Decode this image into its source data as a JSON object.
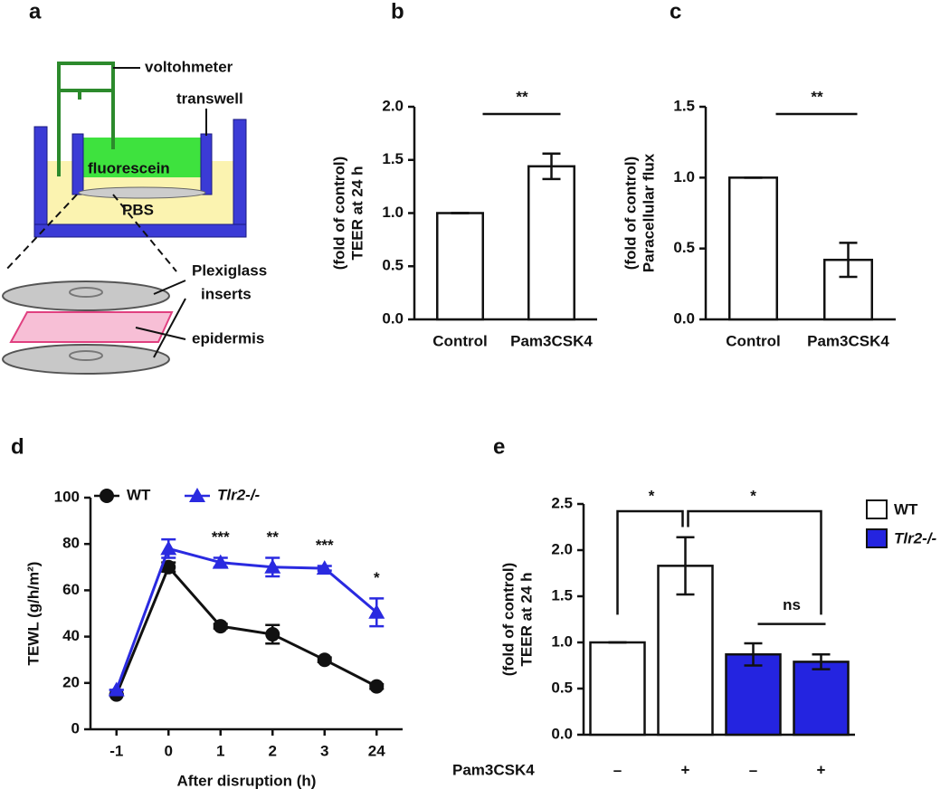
{
  "diagram": {
    "panel": "a",
    "voltohmeter": "voltohmeter",
    "transwell": "transwell",
    "fluorescein": "fluorescein",
    "buffer": "PBS",
    "inserts": [
      "Plexiglass",
      "inserts"
    ],
    "epidermis": "epidermis"
  },
  "chart_data": [
    {
      "type": "bar",
      "panel": "b",
      "y_label": [
        "TEER at 24 h",
        "(fold of control)"
      ],
      "categories": [
        "Control",
        "Pam3CSK4"
      ],
      "values": [
        1.0,
        1.44
      ],
      "errors": [
        0,
        0.12
      ],
      "color": "#ffffff",
      "ylim": [
        0,
        2
      ],
      "yticks": [
        {
          "value": 0,
          "label": "0.0"
        },
        0.5,
        {
          "value": 1,
          "label": "1.0"
        },
        1.5,
        {
          "value": 2,
          "label": "2.0"
        }
      ],
      "annotations": [
        "**"
      ]
    },
    {
      "type": "bar",
      "panel": "c",
      "y_label": [
        "Paracellular flux",
        "(fold of control)"
      ],
      "categories": [
        "Control",
        "Pam3CSK4"
      ],
      "values": [
        1.0,
        0.42
      ],
      "errors": [
        0,
        0.12
      ],
      "color": "#ffffff",
      "ylim": [
        0,
        1.5
      ],
      "yticks": [
        {
          "value": 0,
          "label": "0.0"
        },
        0.5,
        {
          "value": 1,
          "label": "1.0"
        },
        1.5
      ],
      "annotations": [
        "**"
      ]
    },
    {
      "type": "line",
      "panel": "d",
      "y_label": "TEWL (g/h/m²)",
      "x_label": "After disruption (h)",
      "categories": [
        "-1",
        "0",
        "1",
        "2",
        "3",
        "24"
      ],
      "series": [
        {
          "name": "WT",
          "color": "#111111",
          "marker": "circle",
          "values": [
            15,
            70,
            44.5,
            41,
            30,
            18.5
          ],
          "errors": [
            0,
            2,
            1,
            4,
            1,
            1
          ]
        },
        {
          "name": "Tlr2-/-",
          "color": "#2a2ae0",
          "marker": "triangle",
          "values": [
            17,
            78,
            72,
            70,
            69.5,
            50.5
          ],
          "errors": [
            0,
            4,
            2,
            4,
            1,
            6
          ]
        }
      ],
      "ylim": [
        0,
        100
      ],
      "yticks": [
        0,
        20,
        40,
        60,
        80,
        100
      ],
      "annotations": [
        "***",
        "**",
        "***",
        "*"
      ]
    },
    {
      "type": "bar",
      "panel": "e",
      "y_label": [
        "TEER at 24 h",
        "(fold of control)"
      ],
      "row_label": "Pam3CSK4",
      "categories": [
        "–",
        "+",
        "–",
        "+"
      ],
      "series": [
        {
          "name": "WT",
          "color": "#ffffff",
          "values": [
            1.0,
            1.83,
            null,
            null
          ],
          "errors": [
            0,
            0.31,
            null,
            null
          ]
        },
        {
          "name": "Tlr2-/-",
          "color": "#2424e0",
          "values": [
            null,
            null,
            0.87,
            0.79
          ],
          "errors": [
            null,
            null,
            0.12,
            0.08
          ]
        }
      ],
      "ylim": [
        0,
        2.5
      ],
      "yticks": [
        {
          "value": 0,
          "label": "0.0"
        },
        0.5,
        {
          "value": 1,
          "label": "1.0"
        },
        1.5,
        {
          "value": 2,
          "label": "2.0"
        },
        2.5
      ],
      "annotations": [
        "*",
        "*",
        "ns"
      ]
    }
  ]
}
